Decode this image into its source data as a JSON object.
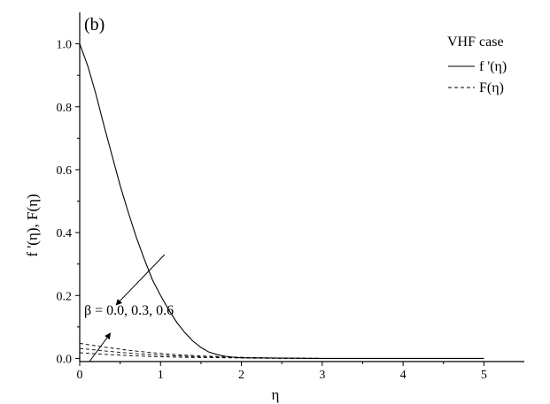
{
  "chart_data": {
    "type": "line",
    "panel_label": "(b)",
    "xlabel": "η",
    "ylabel": "f '(η), F(η)",
    "xlim": [
      0,
      5.5
    ],
    "ylim": [
      -0.01,
      1.1
    ],
    "x_ticks": [
      0,
      1,
      2,
      3,
      4,
      5
    ],
    "x_tick_labels": [
      "0",
      "1",
      "2",
      "3",
      "4",
      "5"
    ],
    "y_ticks": [
      0.0,
      0.2,
      0.4,
      0.6,
      0.8,
      1.0
    ],
    "y_tick_labels": [
      "0.0",
      "0.2",
      "0.4",
      "0.6",
      "0.8",
      "1.0"
    ],
    "grid": false,
    "legend": {
      "title": "VHF case",
      "placement": "top-right",
      "entries": [
        {
          "label": "f '(η)",
          "style": "solid"
        },
        {
          "label": "F(η)",
          "style": "dashed"
        }
      ]
    },
    "series": [
      {
        "style": "solid",
        "x": [
          0,
          0.1,
          0.2,
          0.3,
          0.4,
          0.5,
          0.6,
          0.7,
          0.8,
          0.9,
          1.0,
          1.1,
          1.2,
          1.3,
          1.4,
          1.5,
          1.6,
          1.7,
          1.8,
          1.9,
          2.0,
          2.5,
          3.0,
          4.0,
          5.0
        ],
        "y": [
          1.0,
          0.93,
          0.84,
          0.74,
          0.645,
          0.55,
          0.465,
          0.385,
          0.315,
          0.25,
          0.2,
          0.155,
          0.115,
          0.082,
          0.055,
          0.035,
          0.02,
          0.012,
          0.007,
          0.004,
          0.002,
          0.001,
          0.0,
          0.0,
          0.0
        ]
      },
      {
        "style": "dashed",
        "x": [
          0,
          0.3,
          0.6,
          0.9,
          1.2,
          1.5,
          1.8,
          2.1,
          2.5,
          3.0,
          4.0,
          5.0
        ],
        "y": [
          0.048,
          0.036,
          0.026,
          0.018,
          0.012,
          0.008,
          0.005,
          0.003,
          0.001,
          0.0,
          0.0,
          0.0
        ]
      },
      {
        "style": "dashed",
        "x": [
          0,
          0.3,
          0.6,
          0.9,
          1.2,
          1.5,
          1.8,
          2.1,
          2.5,
          3.0,
          4.0,
          5.0
        ],
        "y": [
          0.032,
          0.024,
          0.017,
          0.012,
          0.008,
          0.005,
          0.003,
          0.002,
          0.001,
          0.0,
          0.0,
          0.0
        ]
      },
      {
        "style": "dashed",
        "x": [
          0,
          0.3,
          0.6,
          0.9,
          1.2,
          1.5,
          1.8,
          2.1,
          2.5,
          3.0,
          4.0,
          5.0
        ],
        "y": [
          0.018,
          0.013,
          0.009,
          0.006,
          0.004,
          0.003,
          0.002,
          0.001,
          0.0,
          0.0,
          0.0,
          0.0
        ]
      }
    ],
    "annotations": [
      {
        "text": "β = 0.0, 0.3, 0.6",
        "arrows": [
          {
            "from": [
              1.05,
              0.33
            ],
            "to": [
              0.45,
              0.17
            ]
          },
          {
            "from": [
              0.12,
              -0.01
            ],
            "to": [
              0.38,
              0.08
            ]
          }
        ]
      }
    ]
  }
}
